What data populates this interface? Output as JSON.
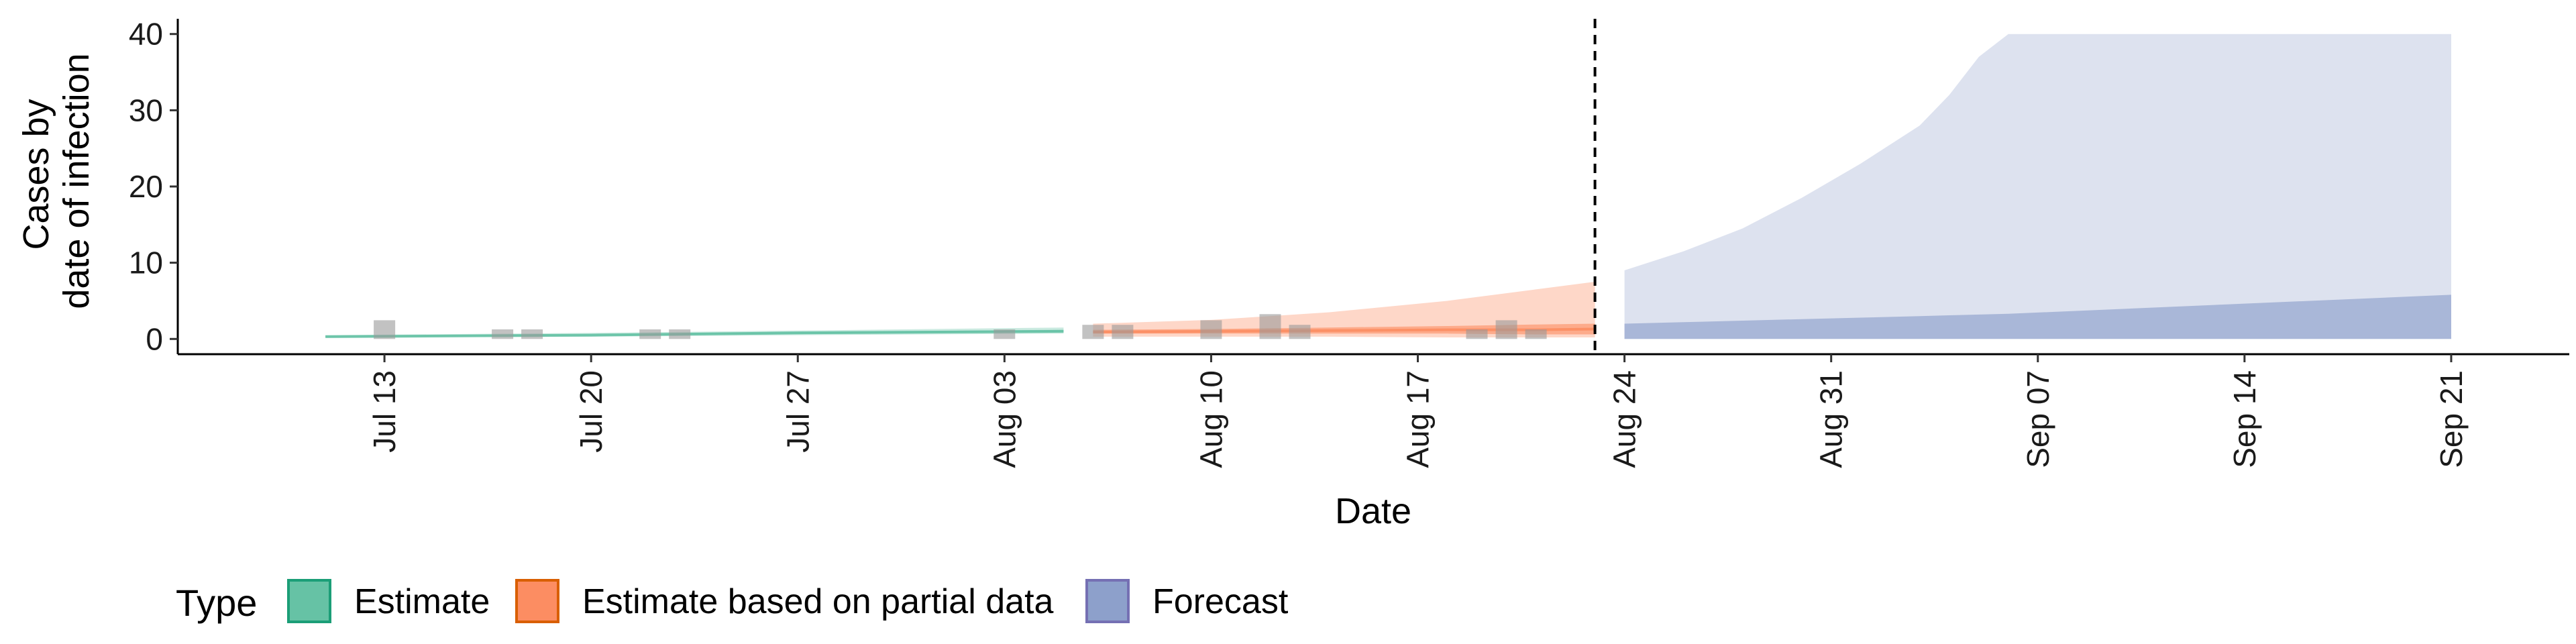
{
  "chart_data": {
    "type": "area",
    "ylabel_lines": [
      "Cases by",
      "date of infection"
    ],
    "xlabel": "Date",
    "ylim": [
      -2,
      42
    ],
    "yticks": [
      0,
      10,
      20,
      30,
      40
    ],
    "x_domain": [
      "2020-07-06",
      "2020-09-25"
    ],
    "xticks": [
      {
        "date": "2020-07-13",
        "label": "Jul 13"
      },
      {
        "date": "2020-07-20",
        "label": "Jul 20"
      },
      {
        "date": "2020-07-27",
        "label": "Jul 27"
      },
      {
        "date": "2020-08-03",
        "label": "Aug 03"
      },
      {
        "date": "2020-08-10",
        "label": "Aug 10"
      },
      {
        "date": "2020-08-17",
        "label": "Aug 17"
      },
      {
        "date": "2020-08-24",
        "label": "Aug 24"
      },
      {
        "date": "2020-08-31",
        "label": "Aug 31"
      },
      {
        "date": "2020-09-07",
        "label": "Sep 07"
      },
      {
        "date": "2020-09-14",
        "label": "Sep 14"
      },
      {
        "date": "2020-09-21",
        "label": "Sep 21"
      }
    ],
    "vline_date": "2020-08-23",
    "legend": {
      "title": "Type",
      "position": "bottom",
      "items": [
        {
          "label": "Estimate",
          "key": "estimate",
          "fill": "#66c2a5",
          "stroke": "#1b9e77"
        },
        {
          "label": "Estimate based on partial data",
          "key": "partial",
          "fill": "#fc8d62",
          "stroke": "#d95f02"
        },
        {
          "label": "Forecast",
          "key": "forecast",
          "fill": "#8da0cb",
          "stroke": "#7570b3"
        }
      ]
    },
    "observed_cases": [
      {
        "date": "2020-07-13",
        "value": 1.4
      },
      {
        "date": "2020-07-17",
        "value": 0.2
      },
      {
        "date": "2020-07-18",
        "value": 0.2
      },
      {
        "date": "2020-07-22",
        "value": 0.2
      },
      {
        "date": "2020-07-23",
        "value": 0.2
      },
      {
        "date": "2020-08-03",
        "value": 0.2
      },
      {
        "date": "2020-08-06",
        "value": 0.8
      },
      {
        "date": "2020-08-07",
        "value": 0.8
      },
      {
        "date": "2020-08-10",
        "value": 1.4
      },
      {
        "date": "2020-08-12",
        "value": 2.2
      },
      {
        "date": "2020-08-13",
        "value": 0.8
      },
      {
        "date": "2020-08-19",
        "value": 0.2
      },
      {
        "date": "2020-08-20",
        "value": 1.4
      },
      {
        "date": "2020-08-21",
        "value": 0.2
      }
    ],
    "series": [
      {
        "name": "Estimate",
        "key": "estimate",
        "dates": [
          "2020-07-11",
          "2020-07-20",
          "2020-07-27",
          "2020-08-05"
        ],
        "lower90": [
          0.2,
          0.3,
          0.5,
          0.7
        ],
        "upper90": [
          0.5,
          0.8,
          1.1,
          1.5
        ],
        "lower50": [
          0.3,
          0.5,
          0.7,
          0.9
        ],
        "upper50": [
          0.4,
          0.6,
          0.9,
          1.2
        ],
        "median": [
          0.3,
          0.5,
          0.8,
          1.0
        ]
      },
      {
        "name": "Estimate based on partial data",
        "key": "partial",
        "dates": [
          "2020-08-06",
          "2020-08-10",
          "2020-08-14",
          "2020-08-18",
          "2020-08-21",
          "2020-08-23"
        ],
        "lower90": [
          0.3,
          0.3,
          0.3,
          0.2,
          0.2,
          0.2
        ],
        "upper90": [
          2.0,
          2.5,
          3.5,
          5.0,
          6.5,
          7.5
        ],
        "lower50": [
          0.7,
          0.7,
          0.7,
          0.7,
          0.6,
          0.6
        ],
        "upper50": [
          1.2,
          1.3,
          1.5,
          1.7,
          1.9,
          2.0
        ],
        "median": [
          0.9,
          1.0,
          1.1,
          1.2,
          1.2,
          1.3
        ]
      },
      {
        "name": "Forecast",
        "key": "forecast",
        "dates": [
          "2020-08-24",
          "2020-08-26",
          "2020-08-28",
          "2020-08-30",
          "2020-09-01",
          "2020-09-03",
          "2020-09-04",
          "2020-09-05",
          "2020-09-06",
          "2020-09-21"
        ],
        "lower90": [
          0,
          0,
          0,
          0,
          0,
          0,
          0,
          0,
          0,
          0
        ],
        "upper90": [
          9.0,
          11.5,
          14.5,
          18.5,
          23.0,
          28.0,
          32.0,
          37.0,
          40.0,
          40.0
        ],
        "lower50": [
          0,
          0,
          0,
          0,
          0,
          0,
          0,
          0,
          0,
          0
        ],
        "upper50": [
          2.0,
          2.2,
          2.4,
          2.6,
          2.8,
          3.0,
          3.1,
          3.2,
          3.3,
          5.8
        ]
      }
    ]
  }
}
